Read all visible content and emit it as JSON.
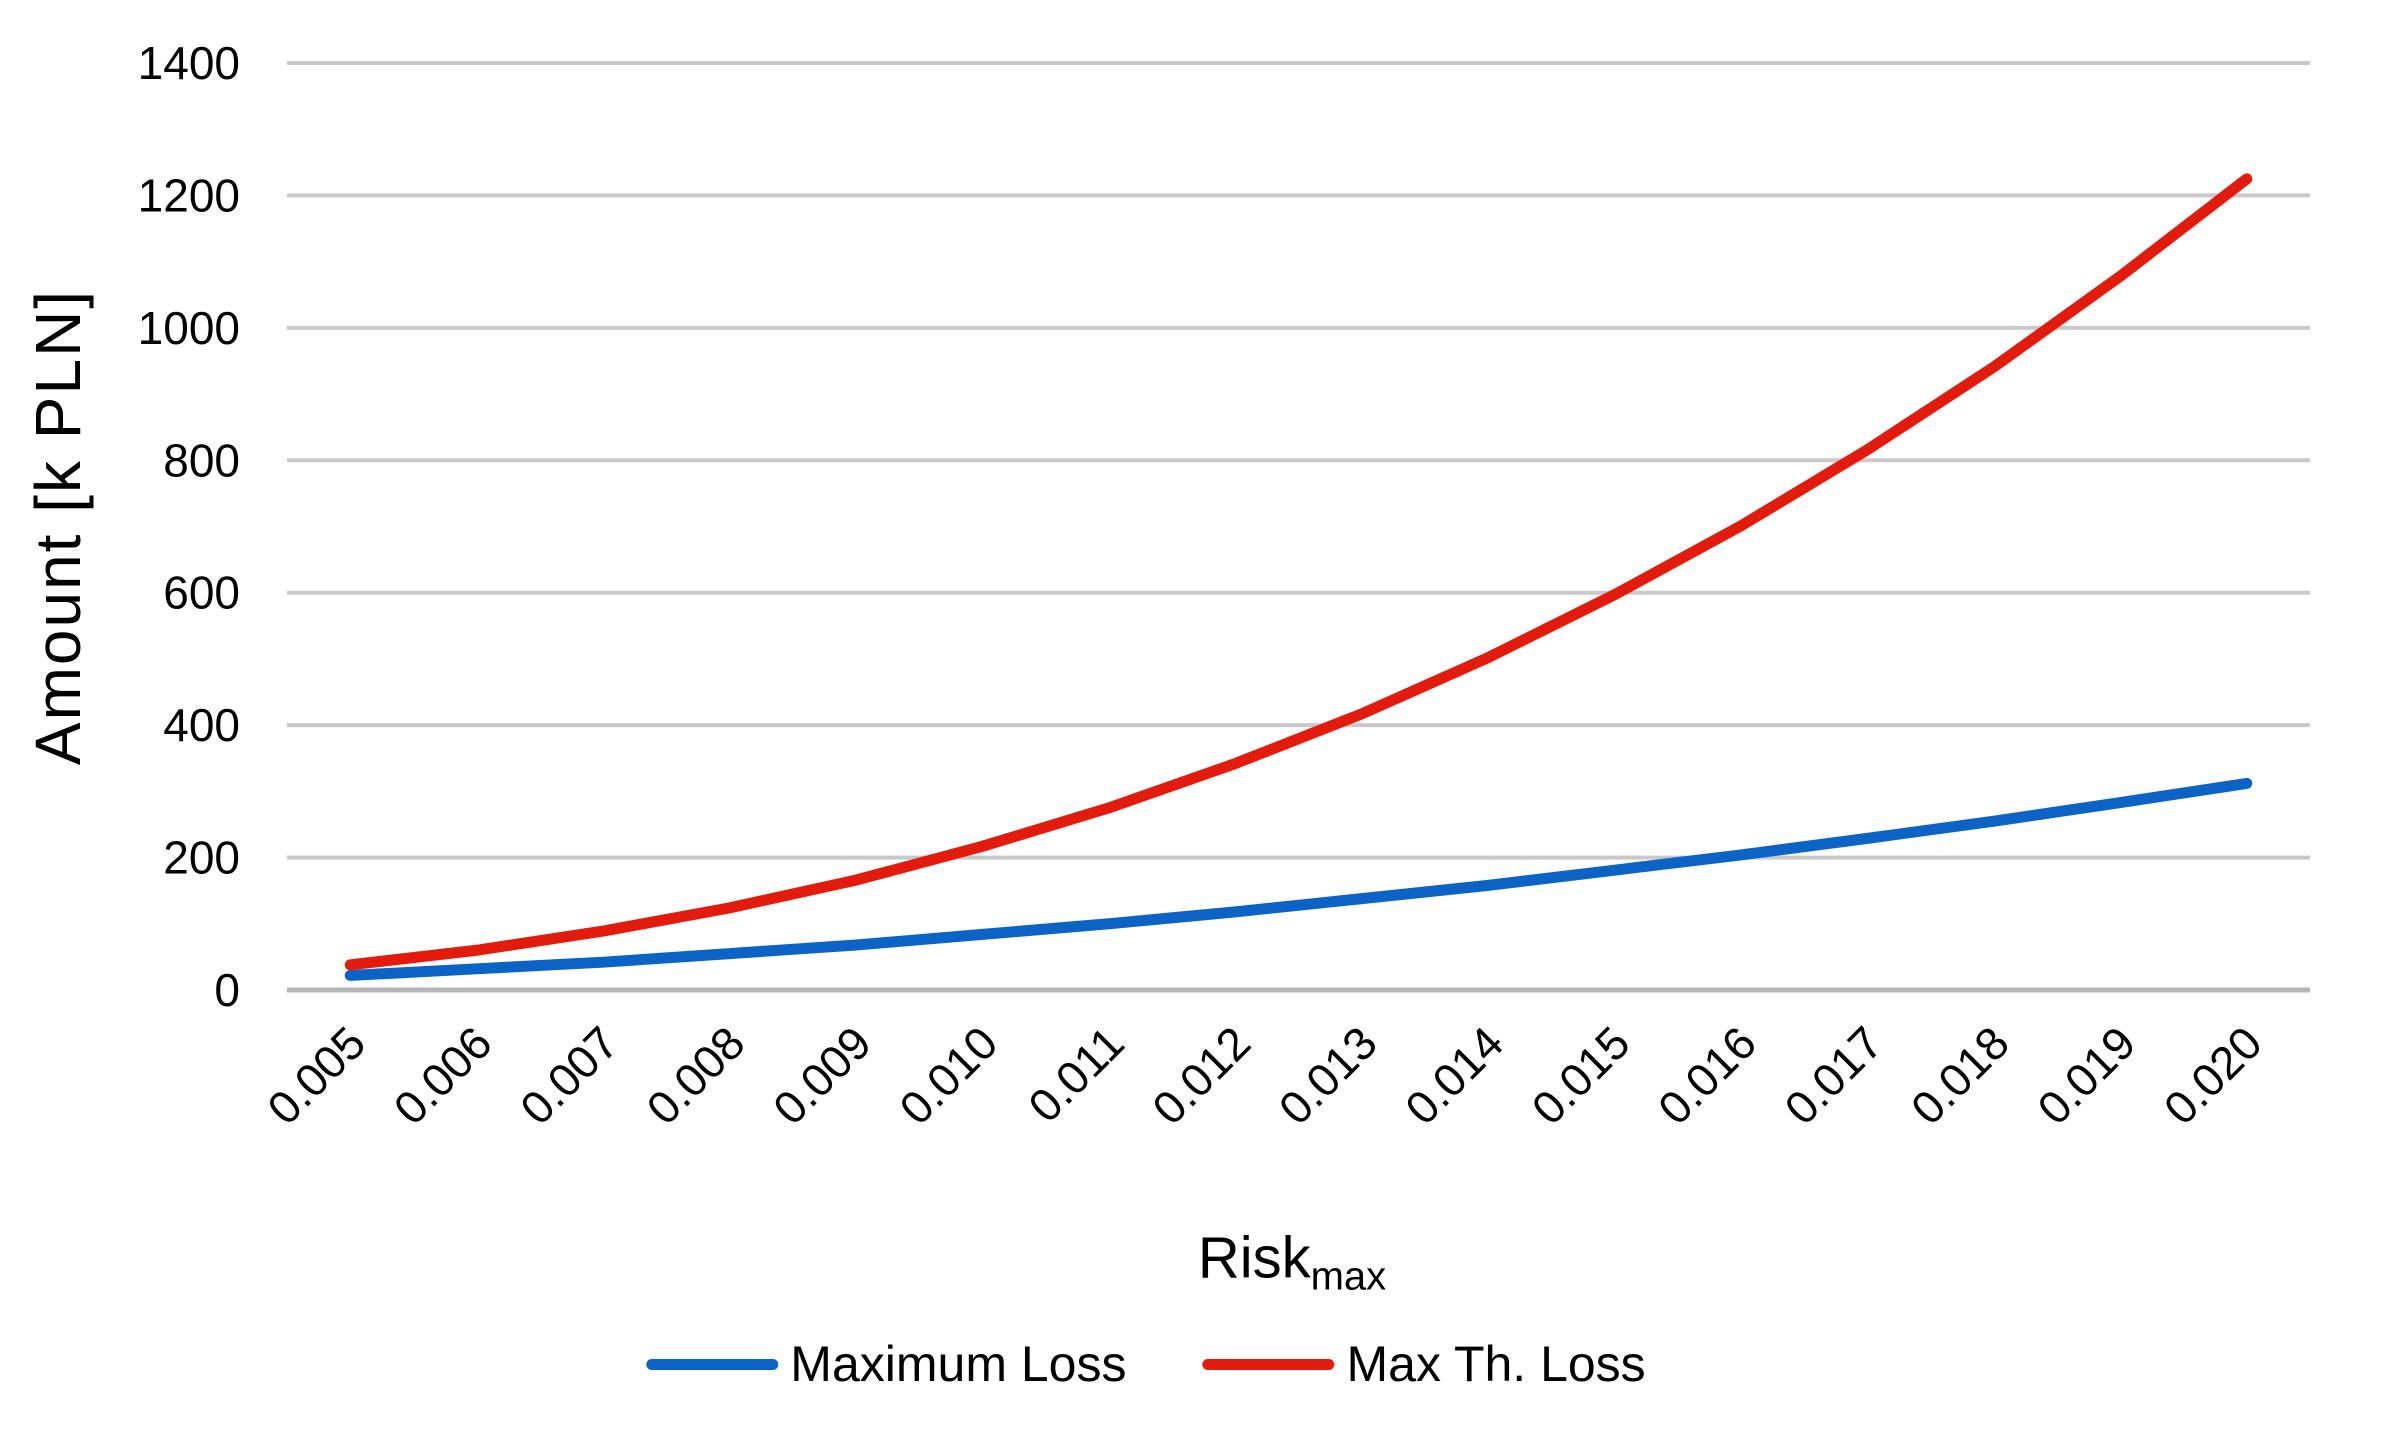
{
  "chart_data": {
    "type": "line",
    "title": "",
    "ylabel": "Amount [k PLN]",
    "xlabel": "Risk",
    "xlabel_subscript": "max",
    "ylim": [
      0,
      1400
    ],
    "y_ticks": [
      0,
      200,
      400,
      600,
      800,
      1000,
      1200,
      1400
    ],
    "x_tick_labels": [
      "0.005",
      "0.006",
      "0.007",
      "0.008",
      "0.009",
      "0.010",
      "0.011",
      "0.012",
      "0.013",
      "0.014",
      "0.015",
      "0.016",
      "0.017",
      "0.018",
      "0.019",
      "0.020"
    ],
    "grid": "horizontal",
    "legend_position": "bottom",
    "colors": {
      "gridline": "#C9C9C9",
      "axis_line": "#B5B5B5",
      "tick_text": "#000000"
    },
    "series": [
      {
        "name": "Maximum Loss",
        "color": "#0C63C6",
        "values": [
          22,
          32,
          42,
          55,
          68,
          84,
          100,
          118,
          138,
          158,
          181,
          204,
          229,
          255,
          283,
          312
        ]
      },
      {
        "name": "Max Th. Loss",
        "color": "#E31B0C",
        "values": [
          38,
          60,
          89,
          124,
          166,
          217,
          275,
          342,
          417,
          502,
          597,
          701,
          816,
          941,
          1078,
          1225
        ]
      }
    ]
  }
}
